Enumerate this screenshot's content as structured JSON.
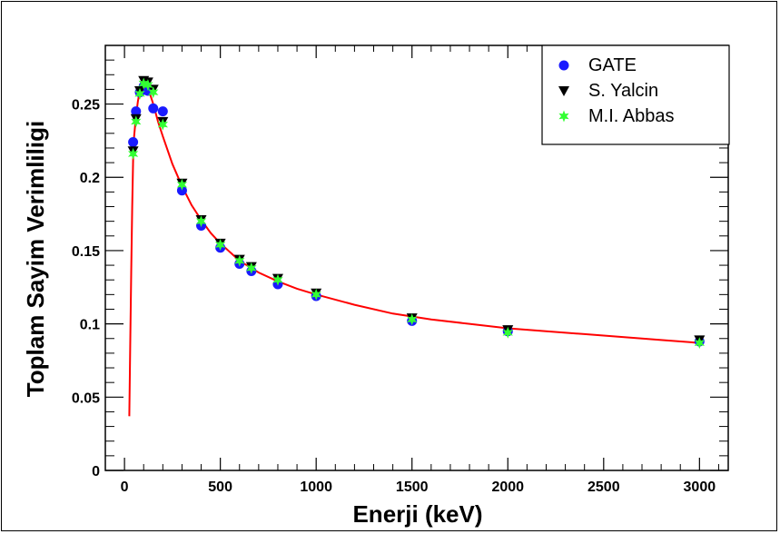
{
  "chart_data": {
    "type": "scatter",
    "title": "",
    "xlabel": "Enerji (keV)",
    "ylabel": "Toplam Sayim Verimliligi",
    "xlim": [
      -100,
      3150
    ],
    "ylim": [
      0,
      0.29
    ],
    "x_ticks": [
      0,
      500,
      1000,
      1500,
      2000,
      2500,
      3000
    ],
    "x_tick_labels": [
      "0",
      "500",
      "1000",
      "1500",
      "2000",
      "2500",
      "3000"
    ],
    "y_ticks": [
      0,
      0.05,
      0.1,
      0.15,
      0.2,
      0.25
    ],
    "y_tick_labels": [
      "0",
      "0.05",
      "0.1",
      "0.15",
      "0.2",
      "0.25"
    ],
    "grid": false,
    "legend_position": "top-right",
    "series": [
      {
        "name": "GATE",
        "marker": "circle",
        "color": "#1a1aff",
        "points": [
          [
            45,
            0.224
          ],
          [
            60,
            0.245
          ],
          [
            80,
            0.258
          ],
          [
            100,
            0.262
          ],
          [
            122,
            0.259
          ],
          [
            150,
            0.247
          ],
          [
            200,
            0.245
          ],
          [
            300,
            0.191
          ],
          [
            400,
            0.167
          ],
          [
            500,
            0.152
          ],
          [
            600,
            0.141
          ],
          [
            662,
            0.136
          ],
          [
            800,
            0.127
          ],
          [
            1000,
            0.119
          ],
          [
            1500,
            0.102
          ],
          [
            2000,
            0.095
          ],
          [
            3000,
            0.088
          ]
        ]
      },
      {
        "name": "S. Yalcin",
        "marker": "triangle-down",
        "color": "#000000",
        "points": [
          [
            45,
            0.218
          ],
          [
            60,
            0.24
          ],
          [
            80,
            0.259
          ],
          [
            100,
            0.266
          ],
          [
            122,
            0.265
          ],
          [
            150,
            0.26
          ],
          [
            200,
            0.238
          ],
          [
            300,
            0.196
          ],
          [
            400,
            0.171
          ],
          [
            500,
            0.155
          ],
          [
            600,
            0.144
          ],
          [
            662,
            0.139
          ],
          [
            800,
            0.131
          ],
          [
            1000,
            0.121
          ],
          [
            1500,
            0.104
          ],
          [
            2000,
            0.096
          ],
          [
            3000,
            0.089
          ]
        ]
      },
      {
        "name": "M.I. Abbas",
        "marker": "star",
        "color": "#33ff33",
        "points": [
          [
            45,
            0.216
          ],
          [
            60,
            0.238
          ],
          [
            80,
            0.257
          ],
          [
            100,
            0.264
          ],
          [
            122,
            0.263
          ],
          [
            150,
            0.258
          ],
          [
            200,
            0.236
          ],
          [
            300,
            0.195
          ],
          [
            400,
            0.17
          ],
          [
            500,
            0.154
          ],
          [
            600,
            0.143
          ],
          [
            662,
            0.138
          ],
          [
            800,
            0.13
          ],
          [
            1000,
            0.12
          ],
          [
            1500,
            0.103
          ],
          [
            2000,
            0.094
          ],
          [
            3000,
            0.087
          ]
        ]
      }
    ],
    "fit_curve": {
      "color": "#ff0000",
      "points": [
        [
          25,
          0.037
        ],
        [
          30,
          0.085
        ],
        [
          35,
          0.135
        ],
        [
          40,
          0.18
        ],
        [
          45,
          0.212
        ],
        [
          50,
          0.228
        ],
        [
          60,
          0.242
        ],
        [
          70,
          0.252
        ],
        [
          80,
          0.259
        ],
        [
          90,
          0.263
        ],
        [
          100,
          0.264
        ],
        [
          110,
          0.263
        ],
        [
          125,
          0.26
        ],
        [
          150,
          0.25
        ],
        [
          175,
          0.238
        ],
        [
          200,
          0.228
        ],
        [
          250,
          0.209
        ],
        [
          300,
          0.194
        ],
        [
          350,
          0.181
        ],
        [
          400,
          0.171
        ],
        [
          450,
          0.162
        ],
        [
          500,
          0.155
        ],
        [
          600,
          0.143
        ],
        [
          700,
          0.135
        ],
        [
          800,
          0.129
        ],
        [
          900,
          0.124
        ],
        [
          1000,
          0.12
        ],
        [
          1200,
          0.113
        ],
        [
          1400,
          0.107
        ],
        [
          1600,
          0.103
        ],
        [
          1800,
          0.1
        ],
        [
          2000,
          0.097
        ],
        [
          2200,
          0.095
        ],
        [
          2400,
          0.093
        ],
        [
          2600,
          0.091
        ],
        [
          2800,
          0.089
        ],
        [
          3000,
          0.087
        ]
      ]
    }
  }
}
